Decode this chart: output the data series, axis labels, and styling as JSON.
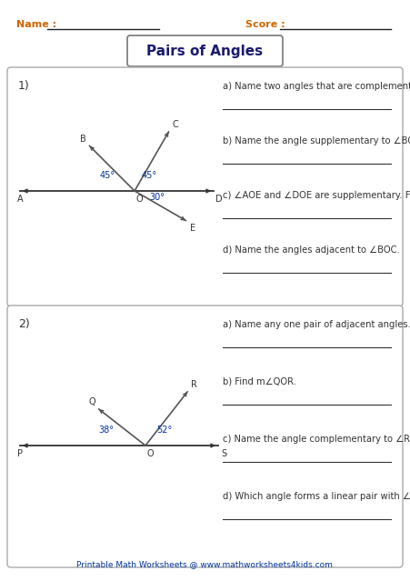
{
  "title": "Pairs of Angles",
  "name_label": "Name :",
  "score_label": "Score :",
  "bg_color": "#ffffff",
  "text_color": "#333333",
  "orange_color": "#cc6600",
  "dark_blue": "#1a1a6e",
  "blue_color": "#003399",
  "gray_line": "#555555",
  "q1": {
    "number": "1)",
    "questions": [
      "a) Name two angles that are complementary.",
      "b) Name the angle supplementary to ∠BOA.",
      "c) ∠AOE and ∠DOE are supplementary. Find m∠AOE.",
      "d) Name the angles adjacent to ∠BOC."
    ]
  },
  "q2": {
    "number": "2)",
    "questions": [
      "a) Name any one pair of adjacent angles.",
      "b) Find m∠QOR.",
      "c) Name the angle complementary to ∠ROS.",
      "d) Which angle forms a linear pair with ∠POQ."
    ]
  },
  "footer": "Printable Math Worksheets @ www.mathworksheets4kids.com"
}
